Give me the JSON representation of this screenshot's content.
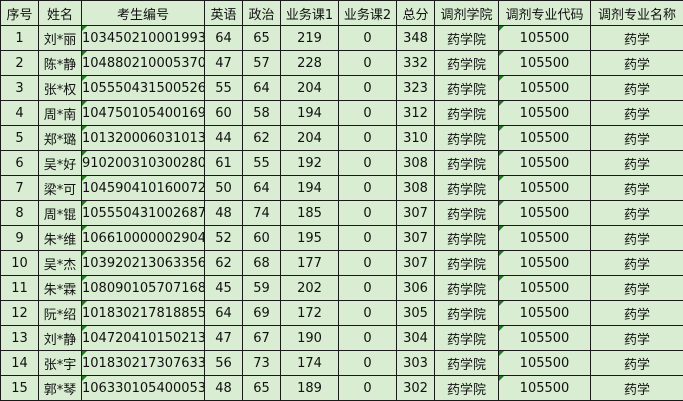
{
  "table": {
    "headers": [
      "序号",
      "姓名",
      "考生编号",
      "英语",
      "政治",
      "业务课1",
      "业务课2",
      "总分",
      "调剂学院",
      "调剂专业代码",
      "调剂专业名称"
    ],
    "rows": [
      [
        "1",
        "刘*丽",
        "103450210001993",
        "64",
        "65",
        "219",
        "0",
        "348",
        "药学院",
        "105500",
        "药学"
      ],
      [
        "2",
        "陈*静",
        "104880210005370",
        "47",
        "57",
        "228",
        "0",
        "332",
        "药学院",
        "105500",
        "药学"
      ],
      [
        "3",
        "张*权",
        "105550431500526",
        "55",
        "64",
        "204",
        "0",
        "323",
        "药学院",
        "105500",
        "药学"
      ],
      [
        "4",
        "周*南",
        "104750105400169",
        "60",
        "58",
        "194",
        "0",
        "312",
        "药学院",
        "105500",
        "药学"
      ],
      [
        "5",
        "郑*璐",
        "101320006031013",
        "44",
        "62",
        "204",
        "0",
        "310",
        "药学院",
        "105500",
        "药学"
      ],
      [
        "6",
        "吴*好",
        "910200310300280",
        "61",
        "55",
        "192",
        "0",
        "308",
        "药学院",
        "105500",
        "药学"
      ],
      [
        "7",
        "梁*可",
        "104590410160072",
        "50",
        "64",
        "194",
        "0",
        "308",
        "药学院",
        "105500",
        "药学"
      ],
      [
        "8",
        "周*锟",
        "105550431002687",
        "48",
        "74",
        "185",
        "0",
        "307",
        "药学院",
        "105500",
        "药学"
      ],
      [
        "9",
        "朱*维",
        "106610000002904",
        "52",
        "60",
        "195",
        "0",
        "307",
        "药学院",
        "105500",
        "药学"
      ],
      [
        "10",
        "吴*杰",
        "103920213063356",
        "62",
        "68",
        "177",
        "0",
        "307",
        "药学院",
        "105500",
        "药学"
      ],
      [
        "11",
        "朱*霖",
        "108090105707168",
        "45",
        "59",
        "202",
        "0",
        "306",
        "药学院",
        "105500",
        "药学"
      ],
      [
        "12",
        "阮*绍",
        "101830217818855",
        "64",
        "69",
        "172",
        "0",
        "305",
        "药学院",
        "105500",
        "药学"
      ],
      [
        "13",
        "刘*静",
        "104720410150213",
        "47",
        "67",
        "190",
        "0",
        "304",
        "药学院",
        "105500",
        "药学"
      ],
      [
        "14",
        "张*宇",
        "101830217307633",
        "56",
        "73",
        "174",
        "0",
        "303",
        "药学院",
        "105500",
        "药学"
      ],
      [
        "15",
        "郭*琴",
        "106330105400053",
        "48",
        "65",
        "189",
        "0",
        "302",
        "药学院",
        "105500",
        "药学"
      ]
    ]
  },
  "colors": {
    "cell_background": "#d9edd2",
    "border": "#1a1a1a",
    "comment_marker": "#1e7e1e"
  }
}
